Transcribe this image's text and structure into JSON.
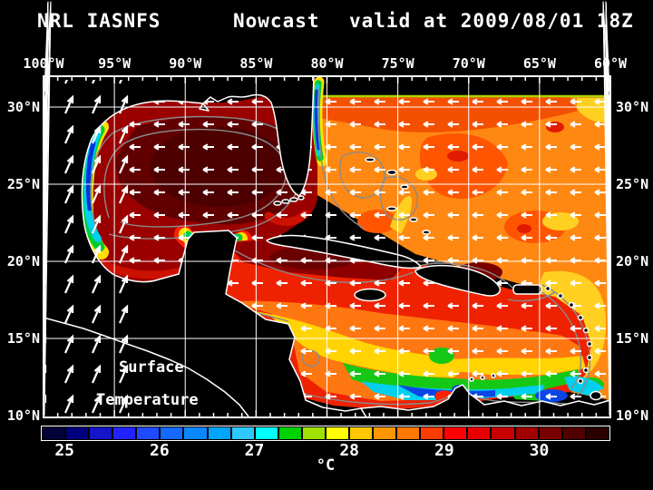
{
  "title": {
    "model": "NRL IASNFS",
    "product": "Nowcast",
    "valid": "valid at 2009/08/01 18Z"
  },
  "map": {
    "overlay_label_line1": "Surface",
    "overlay_label_line2": "Temperature",
    "lon_ticks": [
      "100°W",
      "95°W",
      "90°W",
      "85°W",
      "80°W",
      "75°W",
      "70°W",
      "65°W",
      "60°W"
    ],
    "lat_ticks": [
      "30°N",
      "25°N",
      "20°N",
      "15°N",
      "10°N"
    ],
    "grid_color": "#ffffff",
    "coastline_color": "#ffffff",
    "land_color": "#000000",
    "contour_color": "#8a8a8a",
    "vector_color": "#ffffff"
  },
  "colorbar": {
    "tick_labels": [
      "25",
      "26",
      "27",
      "28",
      "29",
      "30"
    ],
    "unit": "°C",
    "n_cells": 24,
    "colors": [
      "#020238",
      "#00007f",
      "#1414c8",
      "#2222ff",
      "#1e4bff",
      "#1469ff",
      "#0a87ff",
      "#00a5ff",
      "#2ec8ff",
      "#00ffff",
      "#00d200",
      "#a0e000",
      "#ffff00",
      "#ffc800",
      "#ff9600",
      "#ff7800",
      "#ff3c00",
      "#ff0000",
      "#e80000",
      "#c80000",
      "#a00000",
      "#780000",
      "#500000",
      "#2d0000"
    ]
  }
}
